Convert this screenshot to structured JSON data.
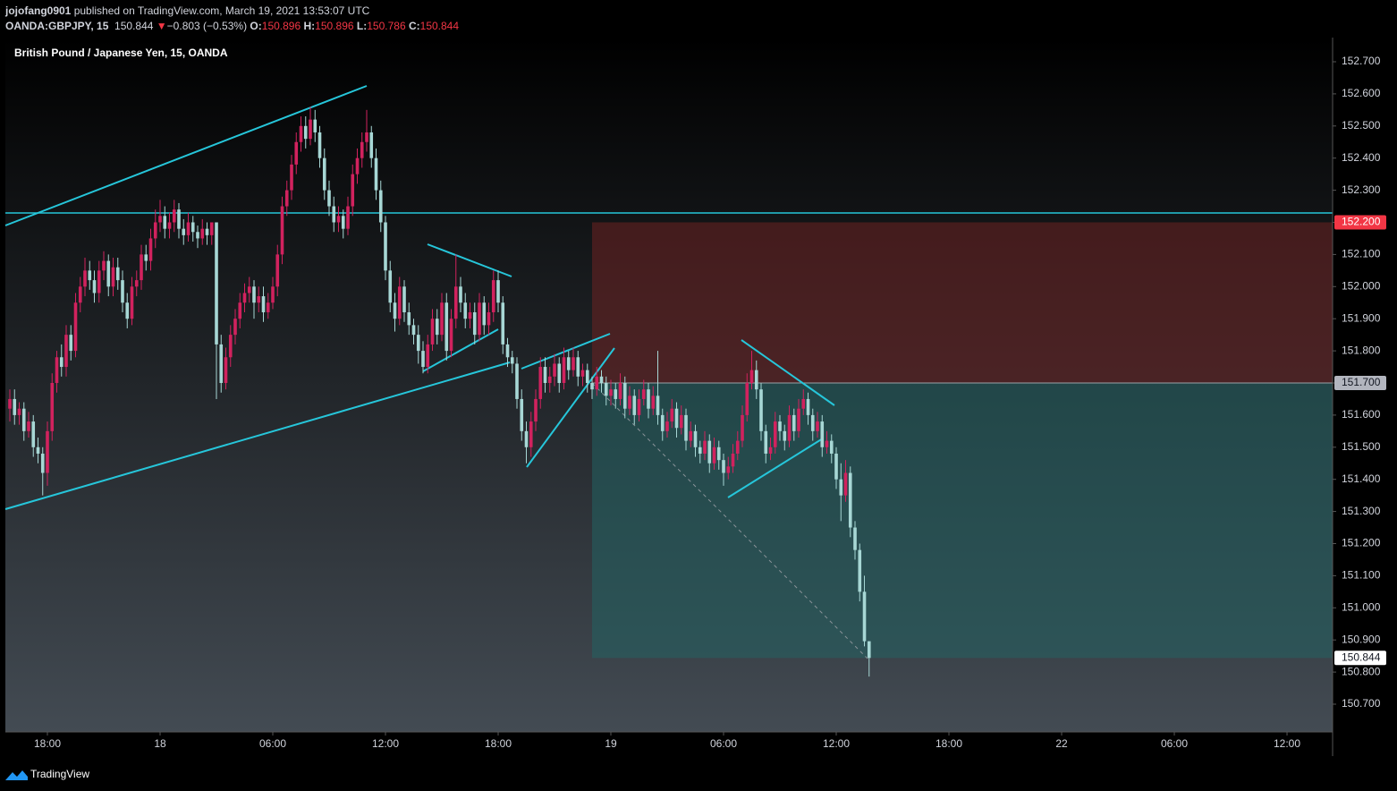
{
  "header": {
    "author": "jojofang0901",
    "published": "published on TradingView.com, March 19, 2021 13:53:07 UTC",
    "symbol": "OANDA:GBPJPY, 15",
    "last": "150.844",
    "arrow": "▼",
    "change": "−0.803 (−0.53%)",
    "o_label": "O:",
    "o_value": "150.896",
    "h_label": "H:",
    "h_value": "150.896",
    "l_label": "L:",
    "l_value": "150.786",
    "c_label": "C:",
    "c_value": "150.844"
  },
  "chart_data": {
    "type": "candlestick",
    "title": "British Pound / Japanese Yen, 15, OANDA",
    "up_color": "#d1225e",
    "down_color": "#a7d7d5",
    "x": [
      -8,
      -7,
      -6,
      -5,
      -4,
      -3,
      -2,
      -1,
      0,
      1,
      2,
      3,
      4,
      5,
      6,
      7,
      8,
      9,
      10,
      11,
      12,
      13,
      14,
      15,
      16,
      17,
      18,
      19,
      20,
      21,
      22,
      23,
      24,
      25,
      26,
      27,
      28,
      29,
      30,
      31,
      32,
      33,
      34,
      35,
      36,
      37,
      38,
      39,
      40,
      41,
      42,
      43,
      44,
      45,
      46,
      47,
      48,
      49,
      50,
      51,
      52,
      53,
      54,
      55,
      56,
      57,
      58,
      59,
      60,
      61,
      62,
      63,
      64,
      65,
      66,
      67,
      68,
      69,
      70,
      71,
      72,
      73,
      74,
      75,
      76,
      77,
      78,
      79,
      80,
      81,
      82,
      83,
      84,
      85,
      86,
      87,
      88,
      89,
      90,
      91,
      92,
      93,
      94,
      95,
      96,
      97,
      98,
      99,
      100,
      101,
      102,
      103,
      104,
      105,
      106,
      107,
      108,
      109,
      110,
      111,
      112,
      113,
      114,
      115,
      116,
      117,
      118,
      119,
      120,
      121,
      122,
      123,
      124,
      125,
      126,
      127,
      128,
      129,
      130,
      131,
      132,
      133,
      134,
      135,
      136,
      137,
      138,
      139,
      140,
      141,
      142,
      143,
      144,
      145,
      146,
      147,
      148,
      149,
      150,
      151,
      152,
      153,
      154,
      155,
      156,
      157,
      158,
      159,
      160,
      161,
      162,
      163,
      164,
      165,
      166,
      167,
      168,
      169,
      170,
      171,
      172,
      173,
      174,
      175
    ],
    "candles": [
      [
        151.62,
        151.68,
        151.58,
        151.65
      ],
      [
        151.65,
        151.68,
        151.57,
        151.6
      ],
      [
        151.6,
        151.64,
        151.57,
        151.62
      ],
      [
        151.62,
        151.64,
        151.52,
        151.55
      ],
      [
        151.55,
        151.61,
        151.53,
        151.58
      ],
      [
        151.58,
        151.6,
        151.47,
        151.5
      ],
      [
        151.5,
        151.53,
        151.45,
        151.48
      ],
      [
        151.48,
        151.5,
        151.35,
        151.42
      ],
      [
        151.42,
        151.58,
        151.38,
        151.55
      ],
      [
        151.55,
        151.73,
        151.52,
        151.7
      ],
      [
        151.7,
        151.8,
        151.67,
        151.78
      ],
      [
        151.78,
        151.82,
        151.72,
        151.75
      ],
      [
        151.75,
        151.88,
        151.72,
        151.85
      ],
      [
        151.85,
        151.88,
        151.77,
        151.8
      ],
      [
        151.8,
        151.98,
        151.78,
        151.95
      ],
      [
        151.95,
        152.03,
        151.92,
        152.0
      ],
      [
        152.0,
        152.09,
        151.97,
        152.05
      ],
      [
        152.05,
        152.08,
        151.99,
        152.02
      ],
      [
        152.02,
        152.05,
        151.95,
        151.98
      ],
      [
        151.98,
        152.08,
        151.95,
        152.05
      ],
      [
        152.05,
        152.11,
        152.02,
        152.08
      ],
      [
        152.08,
        152.1,
        151.97,
        152.0
      ],
      [
        152.0,
        152.09,
        151.97,
        152.06
      ],
      [
        152.06,
        152.09,
        151.99,
        152.02
      ],
      [
        152.02,
        152.05,
        151.92,
        151.95
      ],
      [
        151.95,
        151.98,
        151.87,
        151.9
      ],
      [
        151.9,
        152.03,
        151.88,
        152.0
      ],
      [
        152.0,
        152.05,
        151.97,
        152.02
      ],
      [
        152.02,
        152.13,
        151.99,
        152.1
      ],
      [
        152.1,
        152.13,
        152.05,
        152.08
      ],
      [
        152.08,
        152.18,
        152.05,
        152.15
      ],
      [
        152.15,
        152.24,
        152.12,
        152.2
      ],
      [
        152.2,
        152.27,
        152.17,
        152.22
      ],
      [
        152.22,
        152.25,
        152.15,
        152.18
      ],
      [
        152.18,
        152.23,
        152.15,
        152.2
      ],
      [
        152.2,
        152.27,
        152.17,
        152.24
      ],
      [
        152.24,
        152.26,
        152.15,
        152.18
      ],
      [
        152.18,
        152.21,
        152.13,
        152.16
      ],
      [
        152.16,
        152.23,
        152.14,
        152.2
      ],
      [
        152.2,
        152.22,
        152.14,
        152.17
      ],
      [
        152.17,
        152.19,
        152.12,
        152.15
      ],
      [
        152.15,
        152.21,
        152.13,
        152.18
      ],
      [
        152.18,
        152.2,
        152.13,
        152.16
      ],
      [
        152.16,
        152.2,
        152.13,
        152.2
      ],
      [
        152.2,
        152.2,
        151.65,
        151.82
      ],
      [
        151.82,
        151.85,
        151.67,
        151.7
      ],
      [
        151.7,
        151.81,
        151.68,
        151.78
      ],
      [
        151.78,
        151.88,
        151.75,
        151.85
      ],
      [
        151.85,
        151.93,
        151.82,
        151.9
      ],
      [
        151.9,
        151.98,
        151.87,
        151.95
      ],
      [
        151.95,
        152.01,
        151.92,
        151.98
      ],
      [
        151.98,
        152.03,
        151.95,
        152.0
      ],
      [
        152.0,
        152.02,
        151.9,
        151.95
      ],
      [
        151.95,
        152.0,
        151.92,
        151.97
      ],
      [
        151.97,
        152.0,
        151.89,
        151.92
      ],
      [
        151.92,
        151.98,
        151.9,
        151.95
      ],
      [
        151.95,
        152.03,
        151.93,
        152.0
      ],
      [
        152.0,
        152.13,
        151.97,
        152.1
      ],
      [
        152.1,
        152.28,
        152.07,
        152.25
      ],
      [
        152.25,
        152.33,
        152.22,
        152.3
      ],
      [
        152.3,
        152.41,
        152.27,
        152.38
      ],
      [
        152.38,
        152.48,
        152.35,
        152.45
      ],
      [
        152.45,
        152.53,
        152.42,
        152.5
      ],
      [
        152.5,
        152.53,
        152.43,
        152.46
      ],
      [
        152.46,
        152.56,
        152.44,
        152.52
      ],
      [
        152.52,
        152.55,
        152.45,
        152.48
      ],
      [
        152.48,
        152.5,
        152.37,
        152.4
      ],
      [
        152.4,
        152.43,
        152.27,
        152.3
      ],
      [
        152.3,
        152.33,
        152.22,
        152.25
      ],
      [
        152.25,
        152.28,
        152.17,
        152.2
      ],
      [
        152.2,
        152.25,
        152.17,
        152.22
      ],
      [
        152.22,
        152.24,
        152.15,
        152.18
      ],
      [
        152.18,
        152.28,
        152.16,
        152.25
      ],
      [
        152.25,
        152.38,
        152.22,
        152.35
      ],
      [
        152.35,
        152.43,
        152.32,
        152.4
      ],
      [
        152.4,
        152.48,
        152.37,
        152.45
      ],
      [
        152.45,
        152.55,
        152.42,
        152.48
      ],
      [
        152.48,
        152.5,
        152.37,
        152.4
      ],
      [
        152.4,
        152.43,
        152.27,
        152.3
      ],
      [
        152.3,
        152.33,
        152.17,
        152.2
      ],
      [
        152.2,
        152.22,
        152.02,
        152.05
      ],
      [
        152.05,
        152.08,
        151.92,
        151.95
      ],
      [
        151.95,
        151.98,
        151.86,
        151.9
      ],
      [
        151.9,
        152.03,
        151.88,
        152.0
      ],
      [
        152.0,
        152.02,
        151.89,
        151.92
      ],
      [
        151.92,
        151.95,
        151.85,
        151.88
      ],
      [
        151.88,
        151.9,
        151.82,
        151.85
      ],
      [
        151.85,
        151.88,
        151.76,
        151.8
      ],
      [
        151.8,
        151.83,
        151.73,
        151.75
      ],
      [
        151.75,
        151.85,
        151.73,
        151.82
      ],
      [
        151.82,
        151.93,
        151.8,
        151.9
      ],
      [
        151.9,
        151.93,
        151.82,
        151.85
      ],
      [
        151.85,
        151.98,
        151.83,
        151.95
      ],
      [
        151.95,
        151.98,
        151.77,
        151.8
      ],
      [
        151.8,
        151.93,
        151.78,
        151.9
      ],
      [
        151.9,
        152.1,
        151.87,
        152.0
      ],
      [
        152.0,
        152.03,
        151.92,
        151.95
      ],
      [
        151.95,
        151.98,
        151.87,
        151.9
      ],
      [
        151.9,
        151.95,
        151.87,
        151.92
      ],
      [
        151.92,
        151.95,
        151.82,
        151.85
      ],
      [
        151.85,
        151.98,
        151.83,
        151.95
      ],
      [
        151.95,
        151.97,
        151.85,
        151.88
      ],
      [
        151.88,
        151.95,
        151.85,
        151.92
      ],
      [
        151.92,
        152.05,
        151.89,
        152.02
      ],
      [
        152.02,
        152.05,
        151.92,
        151.95
      ],
      [
        151.95,
        151.97,
        151.79,
        151.82
      ],
      [
        151.82,
        151.84,
        151.75,
        151.78
      ],
      [
        151.78,
        151.8,
        151.73,
        151.76
      ],
      [
        151.76,
        151.78,
        151.62,
        151.65
      ],
      [
        151.65,
        151.68,
        151.52,
        151.55
      ],
      [
        151.55,
        151.58,
        151.45,
        151.5
      ],
      [
        151.5,
        151.61,
        151.47,
        151.58
      ],
      [
        151.58,
        151.68,
        151.55,
        151.65
      ],
      [
        151.65,
        151.78,
        151.62,
        151.75
      ],
      [
        151.75,
        151.78,
        151.67,
        151.7
      ],
      [
        151.7,
        151.75,
        151.67,
        151.72
      ],
      [
        151.72,
        151.79,
        151.69,
        151.76
      ],
      [
        151.76,
        151.78,
        151.67,
        151.7
      ],
      [
        151.7,
        151.81,
        151.68,
        151.78
      ],
      [
        151.78,
        151.8,
        151.71,
        151.74
      ],
      [
        151.74,
        151.81,
        151.72,
        151.78
      ],
      [
        151.78,
        151.8,
        151.69,
        151.72
      ],
      [
        151.72,
        151.76,
        151.69,
        151.74
      ],
      [
        151.74,
        151.76,
        151.67,
        151.7
      ],
      [
        151.7,
        151.72,
        151.65,
        151.68
      ],
      [
        151.68,
        151.75,
        151.66,
        151.72
      ],
      [
        151.72,
        151.74,
        151.67,
        151.7
      ],
      [
        151.7,
        151.72,
        151.63,
        151.66
      ],
      [
        151.66,
        151.71,
        151.63,
        151.68
      ],
      [
        151.68,
        151.7,
        151.62,
        151.65
      ],
      [
        151.65,
        151.73,
        151.63,
        151.7
      ],
      [
        151.7,
        151.72,
        151.59,
        151.62
      ],
      [
        151.62,
        151.69,
        151.6,
        151.66
      ],
      [
        151.66,
        151.68,
        151.57,
        151.6
      ],
      [
        151.6,
        151.68,
        151.58,
        151.65
      ],
      [
        151.65,
        151.71,
        151.63,
        151.68
      ],
      [
        151.68,
        151.7,
        151.59,
        151.62
      ],
      [
        151.62,
        151.69,
        151.6,
        151.66
      ],
      [
        151.66,
        151.8,
        151.57,
        151.6
      ],
      [
        151.6,
        151.62,
        151.52,
        151.55
      ],
      [
        151.55,
        151.61,
        151.53,
        151.58
      ],
      [
        151.58,
        151.65,
        151.56,
        151.62
      ],
      [
        151.62,
        151.64,
        151.53,
        151.56
      ],
      [
        151.56,
        151.63,
        151.54,
        151.6
      ],
      [
        151.6,
        151.62,
        151.49,
        151.52
      ],
      [
        151.52,
        151.58,
        151.5,
        151.55
      ],
      [
        151.55,
        151.57,
        151.47,
        151.5
      ],
      [
        151.5,
        151.52,
        151.45,
        151.48
      ],
      [
        151.48,
        151.55,
        151.46,
        151.52
      ],
      [
        151.52,
        151.54,
        151.42,
        151.45
      ],
      [
        151.45,
        151.53,
        151.43,
        151.5
      ],
      [
        151.5,
        151.52,
        151.43,
        151.46
      ],
      [
        151.46,
        151.48,
        151.38,
        151.42
      ],
      [
        151.42,
        151.47,
        151.4,
        151.44
      ],
      [
        151.44,
        151.51,
        151.42,
        151.48
      ],
      [
        151.48,
        151.55,
        151.46,
        151.52
      ],
      [
        151.52,
        151.63,
        151.5,
        151.6
      ],
      [
        151.6,
        151.73,
        151.58,
        151.7
      ],
      [
        151.7,
        151.8,
        151.68,
        151.74
      ],
      [
        151.74,
        151.77,
        151.65,
        151.68
      ],
      [
        151.68,
        151.7,
        151.52,
        151.55
      ],
      [
        151.55,
        151.57,
        151.45,
        151.48
      ],
      [
        151.48,
        151.53,
        151.46,
        151.5
      ],
      [
        151.5,
        151.61,
        151.48,
        151.58
      ],
      [
        151.58,
        151.6,
        151.52,
        151.55
      ],
      [
        151.55,
        151.57,
        151.49,
        151.52
      ],
      [
        151.52,
        151.63,
        151.5,
        151.6
      ],
      [
        151.6,
        151.62,
        151.52,
        151.55
      ],
      [
        151.55,
        151.65,
        151.53,
        151.62
      ],
      [
        151.62,
        151.68,
        151.6,
        151.65
      ],
      [
        151.65,
        151.67,
        151.57,
        151.6
      ],
      [
        151.6,
        151.62,
        151.52,
        151.55
      ],
      [
        151.55,
        151.61,
        151.53,
        151.58
      ],
      [
        151.58,
        151.6,
        151.47,
        151.5
      ],
      [
        151.5,
        151.55,
        151.48,
        151.52
      ],
      [
        151.52,
        151.54,
        151.45,
        151.48
      ],
      [
        151.48,
        151.5,
        151.37,
        151.4
      ],
      [
        151.4,
        151.45,
        151.27,
        151.35
      ],
      [
        151.35,
        151.46,
        151.33,
        151.42
      ],
      [
        151.42,
        151.44,
        151.22,
        151.25
      ],
      [
        151.25,
        151.27,
        151.15,
        151.18
      ],
      [
        151.18,
        151.2,
        151.02,
        151.05
      ],
      [
        151.05,
        151.1,
        150.88,
        150.896
      ],
      [
        150.896,
        150.896,
        150.786,
        150.844
      ]
    ],
    "xlim": [
      -8.952,
      273.71
    ],
    "xticks": [
      {
        "value": 0,
        "label": "18:00"
      },
      {
        "value": 24,
        "label": "18"
      },
      {
        "value": 48,
        "label": "06:00"
      },
      {
        "value": 72,
        "label": "12:00"
      },
      {
        "value": 96,
        "label": "18:00"
      },
      {
        "value": 120,
        "label": "19"
      },
      {
        "value": 144,
        "label": "06:00"
      },
      {
        "value": 168,
        "label": "12:00"
      },
      {
        "value": 192,
        "label": "18:00"
      },
      {
        "value": 216,
        "label": "22"
      },
      {
        "value": 240,
        "label": "06:00"
      },
      {
        "value": 264,
        "label": "12:00"
      }
    ],
    "ylim": [
      150.6136,
      152.7752
    ],
    "yticks": [
      {
        "value": 150.7,
        "label": "150.700"
      },
      {
        "value": 150.8,
        "label": "150.800"
      },
      {
        "value": 150.9,
        "label": "150.900"
      },
      {
        "value": 151.0,
        "label": "151.000"
      },
      {
        "value": 151.1,
        "label": "151.100"
      },
      {
        "value": 151.2,
        "label": "151.200"
      },
      {
        "value": 151.3,
        "label": "151.300"
      },
      {
        "value": 151.4,
        "label": "151.400"
      },
      {
        "value": 151.5,
        "label": "151.500"
      },
      {
        "value": 151.6,
        "label": "151.600"
      },
      {
        "value": 151.7,
        "label": "151.700"
      },
      {
        "value": 151.8,
        "label": "151.800"
      },
      {
        "value": 151.9,
        "label": "151.900"
      },
      {
        "value": 152.0,
        "label": "152.000"
      },
      {
        "value": 152.1,
        "label": "152.100"
      },
      {
        "value": 152.2,
        "label": "152.200"
      },
      {
        "value": 152.3,
        "label": "152.300"
      },
      {
        "value": 152.4,
        "label": "152.400"
      },
      {
        "value": 152.5,
        "label": "152.500"
      },
      {
        "value": 152.6,
        "label": "152.600"
      },
      {
        "value": 152.7,
        "label": "152.700"
      }
    ],
    "position": {
      "stop": {
        "value": 152.2,
        "label": "152.200"
      },
      "entry": {
        "value": 151.7,
        "label": "151.700"
      },
      "last": {
        "value": 150.844,
        "label": "150.844"
      }
    }
  },
  "footer": {
    "brand": "TradingView"
  }
}
